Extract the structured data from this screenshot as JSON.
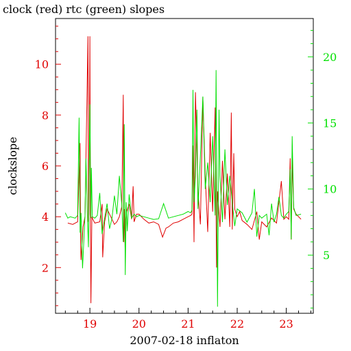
{
  "chart_data": {
    "type": "line",
    "title": "clock (red) rtc (green) slopes",
    "xlabel": "2007-02-18 inflaton",
    "ylabel": "clockslope",
    "x_ticks": [
      19,
      20,
      21,
      22,
      23
    ],
    "xlim": [
      18.3,
      23.55
    ],
    "y_left": {
      "lim": [
        0.2,
        11.8
      ],
      "ticks": [
        2,
        4,
        6,
        8,
        10
      ],
      "color": "#e00000"
    },
    "y_right": {
      "lim": [
        0.6,
        22.9
      ],
      "ticks": [
        5,
        10,
        15,
        20
      ],
      "color": "#00e000"
    },
    "series": [
      {
        "name": "clock",
        "color": "#e00000",
        "axis": "left",
        "x": [
          18.55,
          18.65,
          18.75,
          18.8,
          18.81,
          18.82,
          18.86,
          18.9,
          18.96,
          18.97,
          18.98,
          19.0,
          19.01,
          19.02,
          19.04,
          19.06,
          19.1,
          19.2,
          19.25,
          19.26,
          19.3,
          19.35,
          19.45,
          19.5,
          19.55,
          19.6,
          19.65,
          19.68,
          19.69,
          19.7,
          19.72,
          19.73,
          19.75,
          19.8,
          19.85,
          19.88,
          19.9,
          19.95,
          20.0,
          20.1,
          20.2,
          20.3,
          20.4,
          20.48,
          20.52,
          20.55,
          20.6,
          20.7,
          20.8,
          20.9,
          21.0,
          21.05,
          21.08,
          21.1,
          21.12,
          21.15,
          21.2,
          21.25,
          21.3,
          21.35,
          21.4,
          21.45,
          21.5,
          21.55,
          21.58,
          21.6,
          21.65,
          21.7,
          21.75,
          21.8,
          21.85,
          21.88,
          21.9,
          21.93,
          21.95,
          22.0,
          22.05,
          22.1,
          22.2,
          22.3,
          22.4,
          22.45,
          22.5,
          22.6,
          22.7,
          22.8,
          22.9,
          22.95,
          23.0,
          23.05,
          23.08,
          23.1,
          23.12,
          23.15,
          23.2,
          23.3
        ],
        "y": [
          3.75,
          3.7,
          3.8,
          6.9,
          3.0,
          2.3,
          3.6,
          4.0,
          11.1,
          3.8,
          4.1,
          11.1,
          3.9,
          0.6,
          4.0,
          3.9,
          3.75,
          3.8,
          4.5,
          2.4,
          3.8,
          4.3,
          3.9,
          3.7,
          3.8,
          4.0,
          4.4,
          8.8,
          3.0,
          4.3,
          2.5,
          3.9,
          4.2,
          4.5,
          3.9,
          5.2,
          3.8,
          4.1,
          4.1,
          3.9,
          3.75,
          3.8,
          3.7,
          3.2,
          3.4,
          3.55,
          3.6,
          3.75,
          3.8,
          3.9,
          4.0,
          4.05,
          4.1,
          6.8,
          3.0,
          8.9,
          5.0,
          3.7,
          8.7,
          5.6,
          3.4,
          7.3,
          4.2,
          8.3,
          2.0,
          5.0,
          3.6,
          6.2,
          3.9,
          5.7,
          3.6,
          8.1,
          3.5,
          6.5,
          4.3,
          4.0,
          4.2,
          3.85,
          3.7,
          3.5,
          4.2,
          3.1,
          3.8,
          3.6,
          3.95,
          3.75,
          5.4,
          3.9,
          4.0,
          3.9,
          6.3,
          3.1,
          6.3,
          4.3,
          4.1,
          3.9
        ]
      },
      {
        "name": "rtc",
        "color": "#00e000",
        "axis": "right",
        "x": [
          18.5,
          18.55,
          18.6,
          18.7,
          18.75,
          18.78,
          18.8,
          18.82,
          18.85,
          18.9,
          18.92,
          18.95,
          18.97,
          19.0,
          19.02,
          19.03,
          19.05,
          19.1,
          19.15,
          19.2,
          19.25,
          19.3,
          19.35,
          19.4,
          19.45,
          19.5,
          19.55,
          19.6,
          19.65,
          19.68,
          19.7,
          19.72,
          19.74,
          19.76,
          19.8,
          19.85,
          19.9,
          19.95,
          20.0,
          20.1,
          20.2,
          20.3,
          20.4,
          20.5,
          20.6,
          20.7,
          20.8,
          20.9,
          21.0,
          21.05,
          21.08,
          21.1,
          21.12,
          21.15,
          21.18,
          21.2,
          21.25,
          21.3,
          21.35,
          21.4,
          21.45,
          21.5,
          21.55,
          21.57,
          21.6,
          21.63,
          21.65,
          21.7,
          21.75,
          21.8,
          21.85,
          21.9,
          21.95,
          22.0,
          22.1,
          22.2,
          22.3,
          22.35,
          22.4,
          22.45,
          22.5,
          22.6,
          22.65,
          22.7,
          22.75,
          22.8,
          22.85,
          22.9,
          22.95,
          23.0,
          23.05,
          23.08,
          23.1,
          23.12,
          23.15,
          23.2,
          23.3
        ],
        "y": [
          8.2,
          7.8,
          7.9,
          7.8,
          8.0,
          15.4,
          6.7,
          8.2,
          4.0,
          8.0,
          12.3,
          7.8,
          5.6,
          16.4,
          7.8,
          11.6,
          7.9,
          7.8,
          8.0,
          9.7,
          6.6,
          7.8,
          8.9,
          7.0,
          7.8,
          9.5,
          8.1,
          11.0,
          8.8,
          6.0,
          14.9,
          3.5,
          9.0,
          6.8,
          9.6,
          7.8,
          8.1,
          7.9,
          8.0,
          7.9,
          7.8,
          7.7,
          7.75,
          8.9,
          7.8,
          7.9,
          8.0,
          8.1,
          8.3,
          8.2,
          8.4,
          17.5,
          9.0,
          11.0,
          16.0,
          8.5,
          12.5,
          17.0,
          10.0,
          12.0,
          9.0,
          14.0,
          8.0,
          19.0,
          1.1,
          16.0,
          11.0,
          7.5,
          13.0,
          8.8,
          11.0,
          9.0,
          7.2,
          8.5,
          8.2,
          7.5,
          8.2,
          10.0,
          6.4,
          8.0,
          7.8,
          8.1,
          6.5,
          8.9,
          7.5,
          8.1,
          9.4,
          8.0,
          7.8,
          8.1,
          8.3,
          11.5,
          6.2,
          14.0,
          8.6,
          8.0,
          8.1
        ]
      }
    ]
  }
}
